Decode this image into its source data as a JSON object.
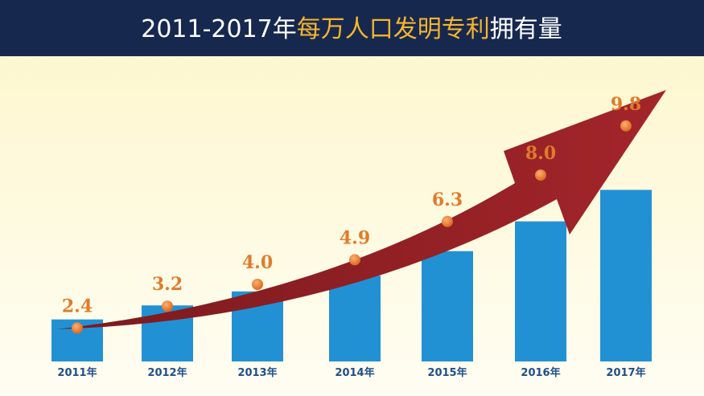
{
  "chart_data": {
    "type": "bar",
    "title": [
      "2011-2017年",
      "每万人口发明专利",
      "拥有量"
    ],
    "categories": [
      "2011年",
      "2012年",
      "2013年",
      "2014年",
      "2015年",
      "2016年",
      "2017年"
    ],
    "values": [
      2.4,
      3.2,
      4.0,
      4.9,
      6.3,
      8.0,
      9.8
    ],
    "value_labels": [
      "2.4",
      "3.2",
      "4.0",
      "4.9",
      "6.3",
      "8.0",
      "9.8"
    ],
    "color": "#2291d4"
  }
}
